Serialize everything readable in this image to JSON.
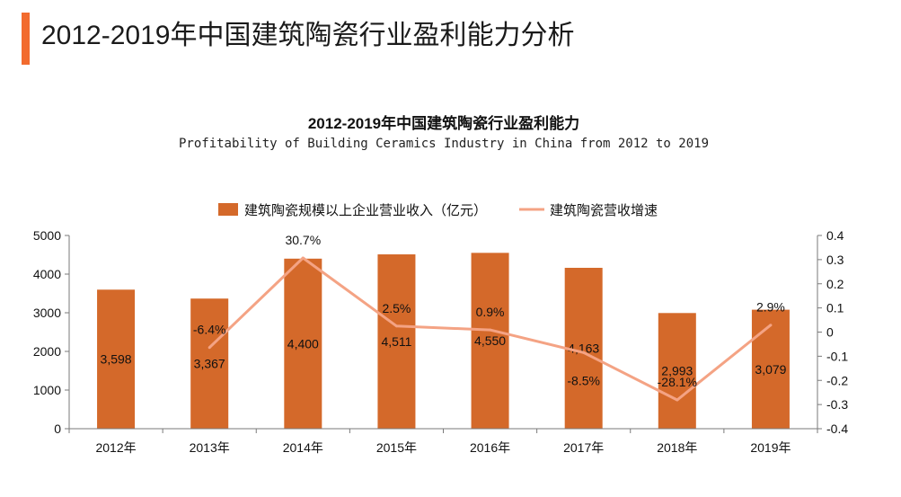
{
  "header": {
    "title": "2012-2019年中国建筑陶瓷行业盈利能力分析"
  },
  "chart_data": {
    "type": "bar",
    "title": "2012-2019年中国建筑陶瓷行业盈利能力",
    "subtitle": "Profitability of Building Ceramics Industry in China from 2012 to 2019",
    "categories": [
      "2012年",
      "2013年",
      "2014年",
      "2015年",
      "2016年",
      "2017年",
      "2018年",
      "2019年"
    ],
    "series": [
      {
        "name": "建筑陶瓷规模以上企业营业收入（亿元）",
        "type": "bar",
        "axis": "left",
        "values": [
          3598,
          3367,
          4400,
          4511,
          4550,
          4163,
          2993,
          3079
        ],
        "labels": [
          "3,598",
          "3,367",
          "4,400",
          "4,511",
          "4,550",
          "4,163",
          "2,993",
          "3,079"
        ]
      },
      {
        "name": "建筑陶瓷营收增速",
        "type": "line",
        "axis": "right",
        "values": [
          null,
          -0.064,
          0.307,
          0.025,
          0.009,
          -0.085,
          -0.281,
          0.029
        ],
        "labels": [
          "",
          "-6.4%",
          "30.7%",
          "2.5%",
          "0.9%",
          "-8.5%",
          "-28.1%",
          "2.9%"
        ]
      }
    ],
    "ylim": [
      0,
      5000
    ],
    "y2lim": [
      -0.4,
      0.4
    ],
    "yticks": [
      "5000",
      "4000",
      "3000",
      "2000",
      "1000",
      "0"
    ],
    "y2ticks": [
      "0.4",
      "0.3",
      "0.2",
      "0.1",
      "0",
      "-0.1",
      "-0.2",
      "-0.3",
      "-0.4"
    ],
    "legend": "top",
    "grid": false,
    "colors": {
      "accent": "#f26b2e",
      "bar": "#d4692a",
      "line": "#f4a384"
    }
  }
}
